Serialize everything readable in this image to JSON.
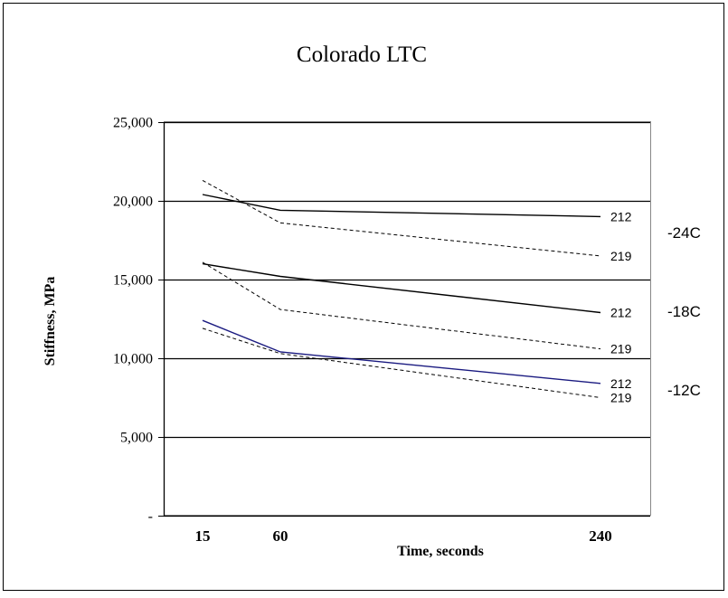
{
  "chart_data": {
    "type": "line",
    "title": "Colorado LTC",
    "xlabel": "Time, seconds",
    "ylabel": "Stiffness, MPa",
    "x_ticks": [
      15,
      60,
      240
    ],
    "y_ticks": [
      {
        "value": 0,
        "label": "-"
      },
      {
        "value": 5000,
        "label": "5,000"
      },
      {
        "value": 10000,
        "label": "10,000"
      },
      {
        "value": 15000,
        "label": "15,000"
      },
      {
        "value": 20000,
        "label": "20,000"
      },
      {
        "value": 25000,
        "label": "25,000"
      }
    ],
    "ylim": [
      0,
      25000
    ],
    "grid": "horizontal",
    "series": [
      {
        "label": "212",
        "group": "-24C",
        "color": "#000000",
        "dashed": false,
        "x": [
          15,
          60,
          240
        ],
        "y": [
          20400,
          19400,
          19000
        ]
      },
      {
        "label": "219",
        "group": "-24C",
        "color": "#000000",
        "dashed": true,
        "x": [
          15,
          60,
          240
        ],
        "y": [
          21300,
          18600,
          16500
        ]
      },
      {
        "label": "212",
        "group": "-18C",
        "color": "#000000",
        "dashed": false,
        "x": [
          15,
          60,
          240
        ],
        "y": [
          16000,
          15200,
          12900
        ]
      },
      {
        "label": "219",
        "group": "-18C",
        "color": "#000000",
        "dashed": true,
        "x": [
          15,
          60,
          240
        ],
        "y": [
          16100,
          13100,
          10600
        ]
      },
      {
        "label": "212",
        "group": "-12C",
        "color": "#1a1a80",
        "dashed": false,
        "x": [
          15,
          60,
          240
        ],
        "y": [
          12400,
          10400,
          8400
        ]
      },
      {
        "label": "219",
        "group": "-12C",
        "color": "#000000",
        "dashed": true,
        "x": [
          15,
          60,
          240
        ],
        "y": [
          11900,
          10300,
          7500
        ]
      }
    ],
    "groups": [
      {
        "label": "-24C",
        "anchor_y": 18000
      },
      {
        "label": "-18C",
        "anchor_y": 13000
      },
      {
        "label": "-12C",
        "anchor_y": 8000
      }
    ]
  }
}
